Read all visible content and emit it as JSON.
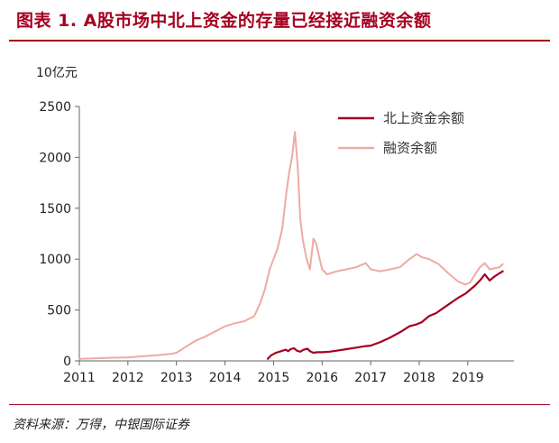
{
  "figure": {
    "title": "图表 1. A股市场中北上资金的存量已经接近融资余额",
    "unit_label": "10亿元",
    "source": "资料来源：万得，中银国际证券"
  },
  "colors": {
    "northbound": "#a50021",
    "margin": "#eeaaa4",
    "title": "#a50021"
  },
  "chart_data": {
    "type": "line",
    "title": "A股市场中北上资金的存量已经接近融资余额",
    "ylabel": "10亿元",
    "xlabel": "",
    "xlim": [
      2011.0,
      2019.95
    ],
    "ylim": [
      0,
      2500
    ],
    "x_ticks": [
      2011,
      2012,
      2013,
      2014,
      2015,
      2016,
      2017,
      2018,
      2019
    ],
    "y_ticks": [
      0,
      500,
      1000,
      1500,
      2000,
      2500
    ],
    "grid": false,
    "legend_position": "top-right",
    "series": [
      {
        "name": "北上资金余额",
        "key": "northbound",
        "points": [
          [
            2014.88,
            20
          ],
          [
            2014.95,
            55
          ],
          [
            2015.05,
            80
          ],
          [
            2015.15,
            95
          ],
          [
            2015.25,
            110
          ],
          [
            2015.3,
            95
          ],
          [
            2015.35,
            115
          ],
          [
            2015.42,
            125
          ],
          [
            2015.48,
            100
          ],
          [
            2015.55,
            90
          ],
          [
            2015.62,
            110
          ],
          [
            2015.7,
            120
          ],
          [
            2015.75,
            95
          ],
          [
            2015.82,
            80
          ],
          [
            2015.9,
            85
          ],
          [
            2016.0,
            85
          ],
          [
            2016.15,
            90
          ],
          [
            2016.3,
            100
          ],
          [
            2016.5,
            115
          ],
          [
            2016.7,
            130
          ],
          [
            2016.9,
            145
          ],
          [
            2017.0,
            150
          ],
          [
            2017.2,
            185
          ],
          [
            2017.4,
            230
          ],
          [
            2017.6,
            280
          ],
          [
            2017.8,
            340
          ],
          [
            2017.95,
            360
          ],
          [
            2018.05,
            380
          ],
          [
            2018.2,
            440
          ],
          [
            2018.35,
            470
          ],
          [
            2018.5,
            520
          ],
          [
            2018.65,
            570
          ],
          [
            2018.8,
            620
          ],
          [
            2018.95,
            660
          ],
          [
            2019.05,
            700
          ],
          [
            2019.15,
            740
          ],
          [
            2019.25,
            790
          ],
          [
            2019.35,
            850
          ],
          [
            2019.45,
            790
          ],
          [
            2019.55,
            830
          ],
          [
            2019.65,
            860
          ],
          [
            2019.72,
            880
          ]
        ]
      },
      {
        "name": "融资余额",
        "key": "margin",
        "points": [
          [
            2011.0,
            20
          ],
          [
            2011.3,
            25
          ],
          [
            2011.6,
            30
          ],
          [
            2012.0,
            35
          ],
          [
            2012.3,
            45
          ],
          [
            2012.6,
            55
          ],
          [
            2012.9,
            70
          ],
          [
            2013.0,
            80
          ],
          [
            2013.2,
            140
          ],
          [
            2013.4,
            200
          ],
          [
            2013.6,
            240
          ],
          [
            2013.8,
            290
          ],
          [
            2014.0,
            340
          ],
          [
            2014.2,
            370
          ],
          [
            2014.4,
            390
          ],
          [
            2014.6,
            440
          ],
          [
            2014.72,
            560
          ],
          [
            2014.82,
            700
          ],
          [
            2014.92,
            900
          ],
          [
            2015.0,
            1000
          ],
          [
            2015.08,
            1100
          ],
          [
            2015.18,
            1300
          ],
          [
            2015.25,
            1600
          ],
          [
            2015.32,
            1850
          ],
          [
            2015.38,
            2000
          ],
          [
            2015.44,
            2250
          ],
          [
            2015.5,
            1900
          ],
          [
            2015.55,
            1400
          ],
          [
            2015.6,
            1200
          ],
          [
            2015.68,
            1000
          ],
          [
            2015.75,
            900
          ],
          [
            2015.82,
            1200
          ],
          [
            2015.88,
            1150
          ],
          [
            2015.95,
            1000
          ],
          [
            2016.0,
            900
          ],
          [
            2016.1,
            850
          ],
          [
            2016.3,
            880
          ],
          [
            2016.5,
            900
          ],
          [
            2016.7,
            920
          ],
          [
            2016.9,
            960
          ],
          [
            2017.0,
            900
          ],
          [
            2017.2,
            880
          ],
          [
            2017.4,
            900
          ],
          [
            2017.6,
            920
          ],
          [
            2017.8,
            1000
          ],
          [
            2017.95,
            1050
          ],
          [
            2018.05,
            1020
          ],
          [
            2018.2,
            1000
          ],
          [
            2018.4,
            950
          ],
          [
            2018.6,
            860
          ],
          [
            2018.8,
            780
          ],
          [
            2018.95,
            750
          ],
          [
            2019.05,
            770
          ],
          [
            2019.15,
            850
          ],
          [
            2019.25,
            920
          ],
          [
            2019.35,
            960
          ],
          [
            2019.45,
            900
          ],
          [
            2019.55,
            910
          ],
          [
            2019.65,
            920
          ],
          [
            2019.72,
            950
          ]
        ]
      }
    ]
  }
}
